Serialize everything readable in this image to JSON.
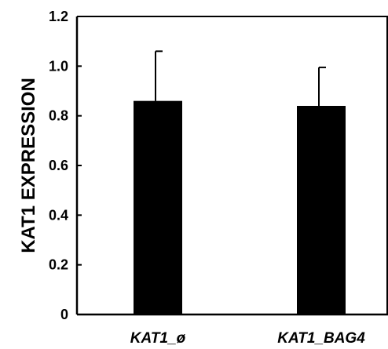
{
  "chart_data": {
    "type": "bar",
    "title": "",
    "xlabel": "",
    "ylabel": "KAT1 EXPRESSION",
    "categories": [
      "KAT1_ø",
      "KAT1_BAG4"
    ],
    "values": [
      0.86,
      0.84
    ],
    "errors": [
      0.2,
      0.155
    ],
    "ylim": [
      0,
      1.2
    ],
    "yticks": [
      0,
      0.2,
      0.4,
      0.6,
      0.8,
      1.0,
      1.2
    ],
    "ytick_labels": [
      "0",
      "0.2",
      "0.4",
      "0.6",
      "0.8",
      "1.0",
      "1.2"
    ],
    "grid": false,
    "bar_color": "#000000"
  }
}
